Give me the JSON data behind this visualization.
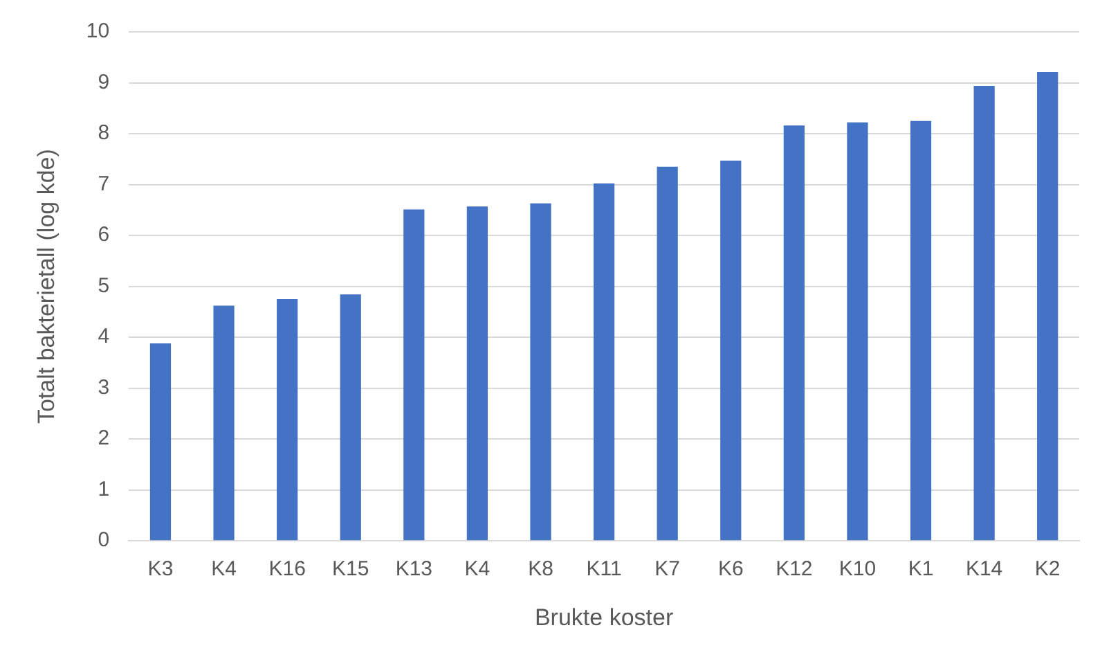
{
  "chart_data": {
    "type": "bar",
    "xlabel": "Brukte koster",
    "ylabel": "Totalt bakterietall (log kde)",
    "categories": [
      "K3",
      "K4",
      "K16",
      "K15",
      "K13",
      "K4",
      "K8",
      "K11",
      "K7",
      "K6",
      "K12",
      "K10",
      "K1",
      "K14",
      "K2"
    ],
    "values": [
      3.88,
      4.62,
      4.75,
      4.84,
      6.51,
      6.57,
      6.63,
      7.02,
      7.35,
      7.47,
      8.16,
      8.22,
      8.25,
      8.94,
      9.21
    ],
    "color": "#4472c4",
    "ylim": [
      0,
      10
    ],
    "yticks": [
      0,
      1,
      2,
      3,
      4,
      5,
      6,
      7,
      8,
      9,
      10
    ],
    "grid": "y"
  }
}
